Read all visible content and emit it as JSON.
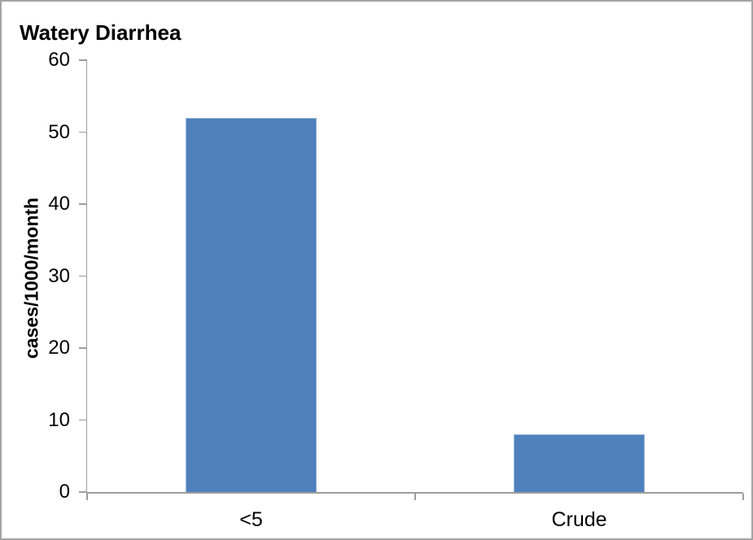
{
  "figure": {
    "background": "#ffffff",
    "frame_color": "#a3a3a3"
  },
  "chart_data": {
    "type": "bar",
    "title": "Watery Diarrhea",
    "xlabel": "",
    "ylabel": "cases/1000/month",
    "categories": [
      "<5",
      "Crude"
    ],
    "values": [
      52,
      8
    ],
    "ylim": [
      0,
      60
    ],
    "yticks": [
      0,
      10,
      20,
      30,
      40,
      50,
      60
    ],
    "grid": false,
    "legend_position": "none",
    "bar_color": "#4F81BD",
    "bar_border_color": "#95B3D7",
    "axis_color": "#9d9d9d",
    "text_color": "#000000"
  }
}
